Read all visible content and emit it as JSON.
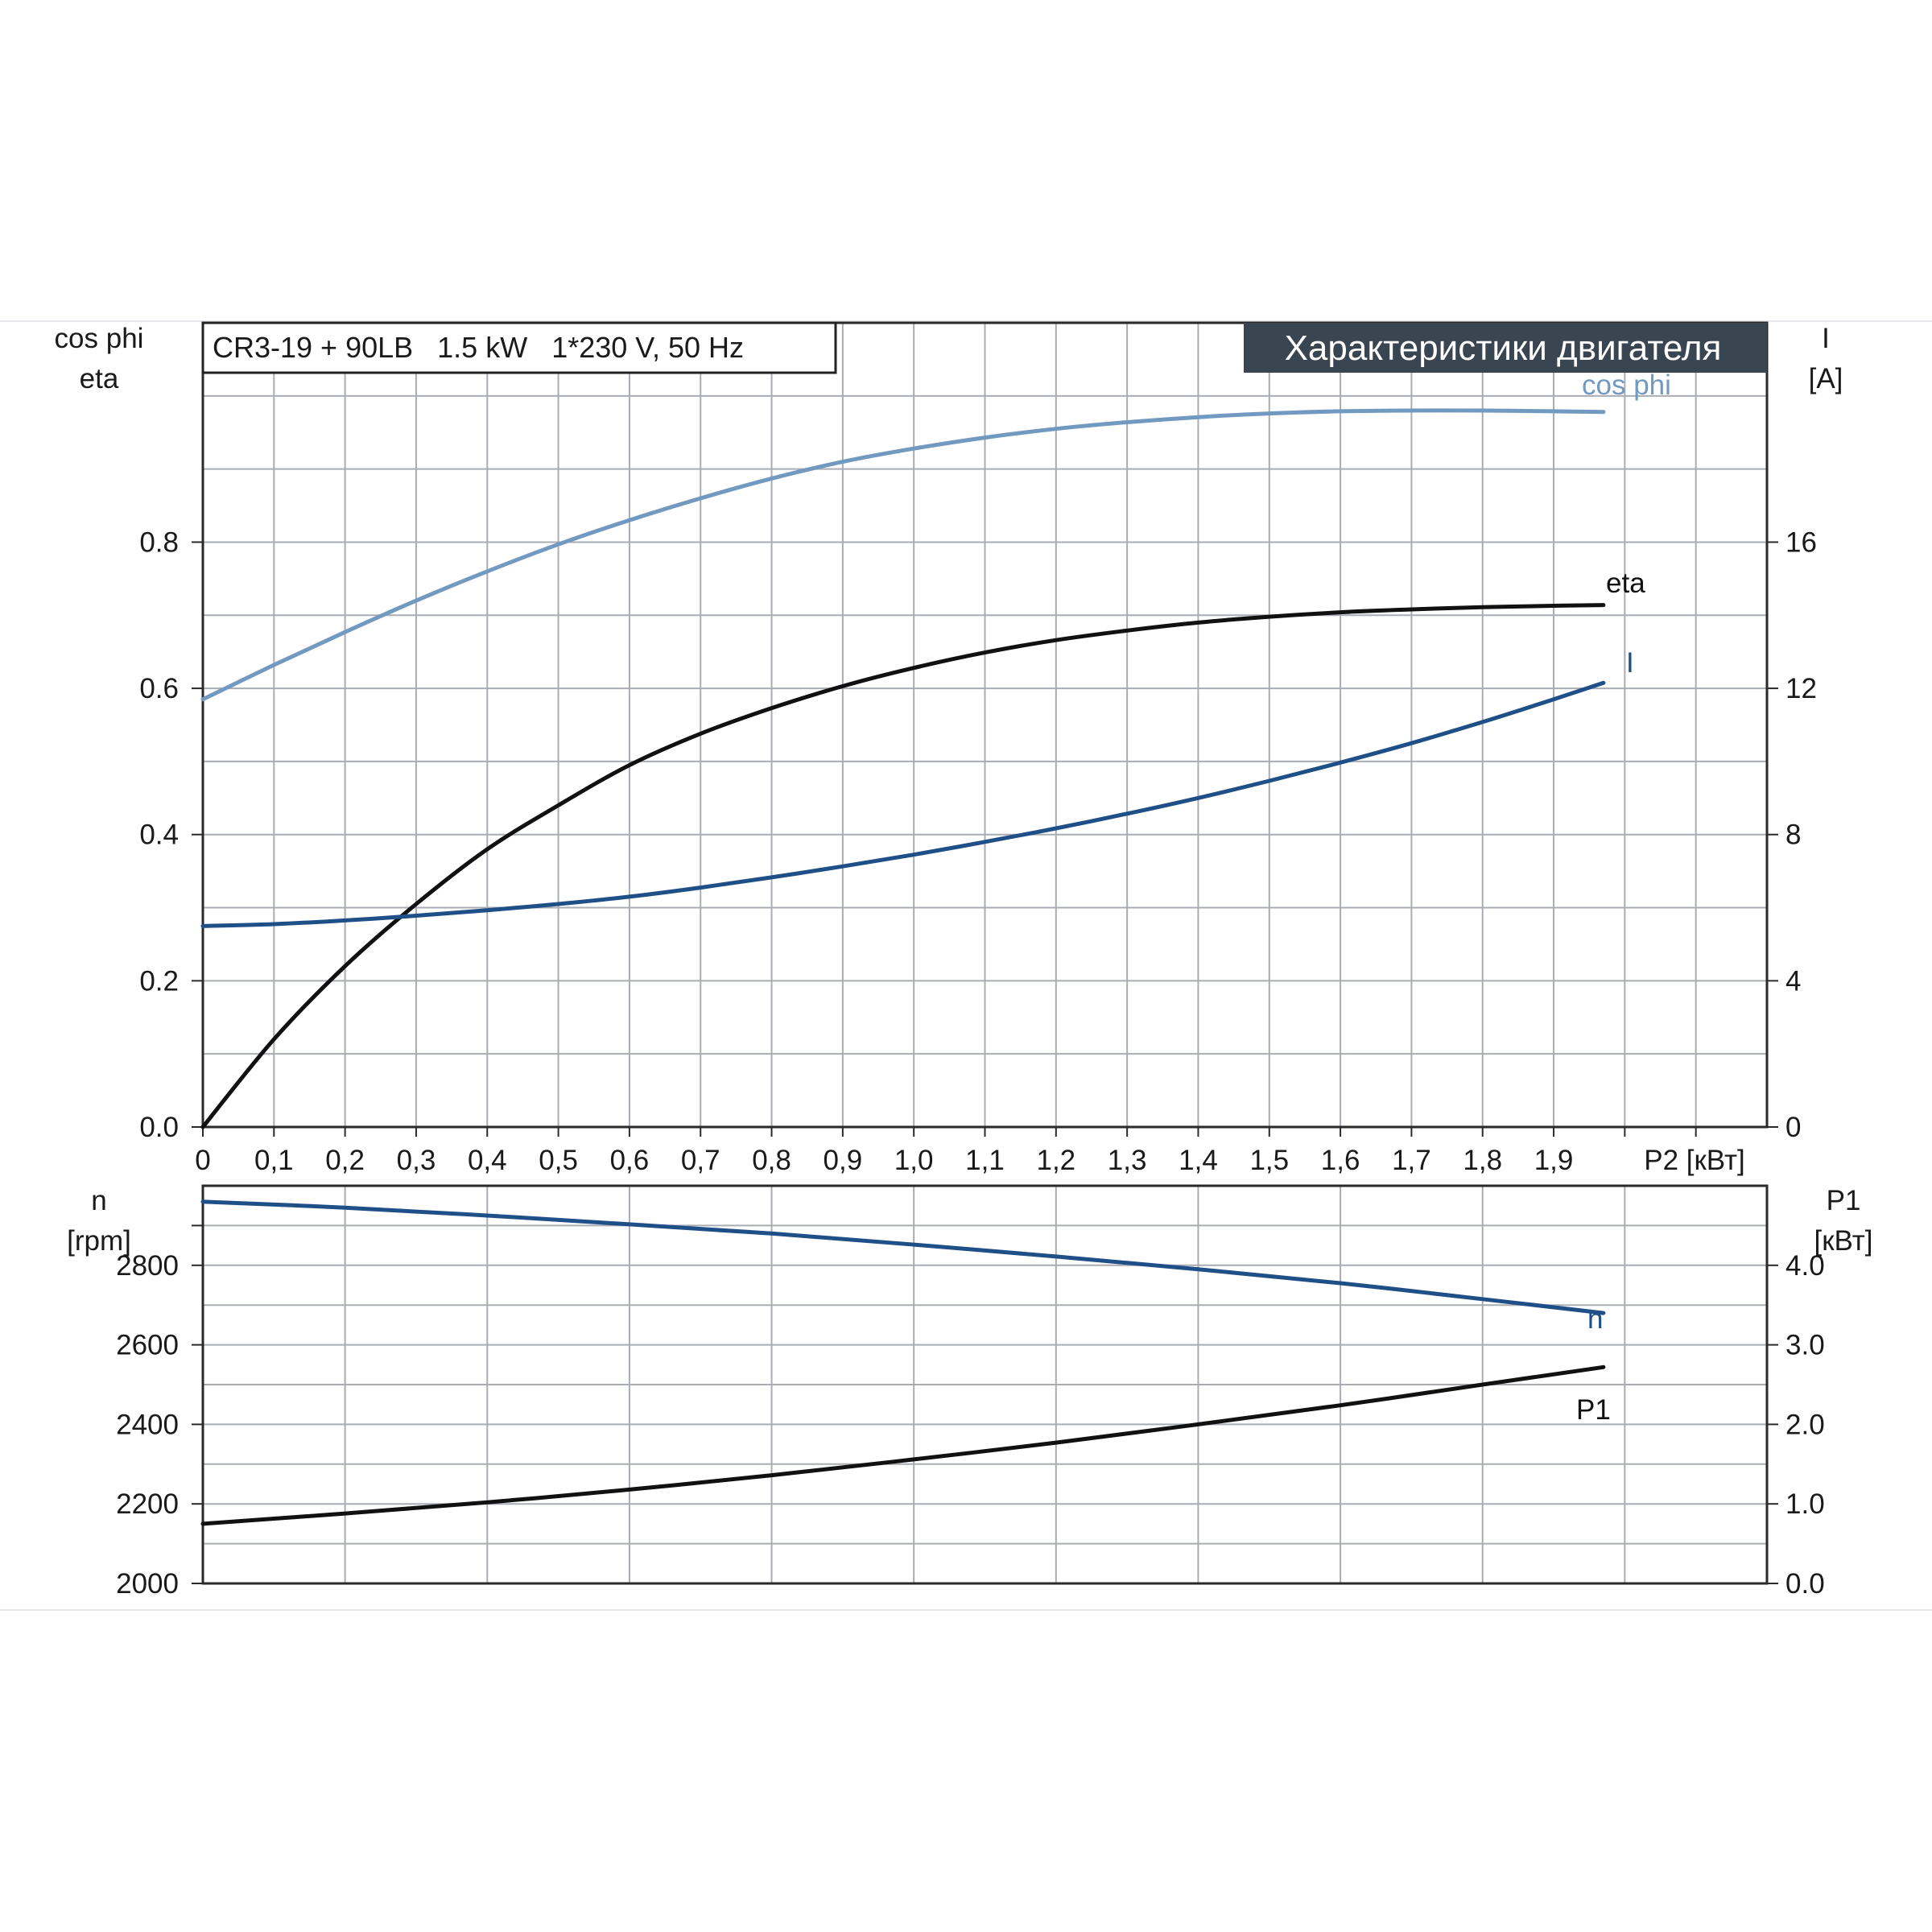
{
  "banner": "Характеристики двигателя",
  "info": "CR3-19 + 90LB   1.5 kW   1*230 V, 50 Hz",
  "colors": {
    "grid": "#a9adb3",
    "frame": "#2a2a2a",
    "banner_bg": "#3a4552",
    "cosphi": "#7299c0",
    "current": "#1f4f87",
    "eta": "#111111",
    "speed": "#1f4f87",
    "p1": "#111111",
    "background": "#ffffff"
  },
  "chart_data": [
    {
      "type": "line",
      "xlabel": "P2 [кВт]",
      "x_ticks": [
        "0",
        "0,1",
        "0,2",
        "0,3",
        "0,4",
        "0,5",
        "0,6",
        "0,7",
        "0,8",
        "0,9",
        "1,0",
        "1,1",
        "1,2",
        "1,3",
        "1,4",
        "1,5",
        "1,6",
        "1,7",
        "1,8",
        "1,9"
      ],
      "xlim": [
        0,
        2.2
      ],
      "y_left": {
        "labels": [
          "cos phi",
          "eta"
        ],
        "ticks": [
          "0.0",
          "0.2",
          "0.4",
          "0.6",
          "0.8"
        ],
        "lim": [
          0,
          1.1
        ]
      },
      "y_right": {
        "labels": [
          "I",
          "[A]"
        ],
        "ticks": [
          "0",
          "4",
          "8",
          "12",
          "16"
        ],
        "lim": [
          0,
          22
        ]
      },
      "grid": true,
      "series": [
        {
          "name": "cos phi",
          "axis": "left",
          "x": [
            0,
            0.1,
            0.2,
            0.3,
            0.4,
            0.5,
            0.6,
            0.7,
            0.8,
            0.9,
            1.0,
            1.1,
            1.2,
            1.3,
            1.4,
            1.5,
            1.6,
            1.7,
            1.8,
            1.9,
            1.97
          ],
          "y": [
            0.585,
            0.632,
            0.677,
            0.72,
            0.76,
            0.797,
            0.83,
            0.86,
            0.887,
            0.91,
            0.928,
            0.943,
            0.955,
            0.964,
            0.971,
            0.976,
            0.979,
            0.98,
            0.98,
            0.979,
            0.978
          ]
        },
        {
          "name": "eta",
          "axis": "left",
          "x": [
            0,
            0.1,
            0.2,
            0.3,
            0.4,
            0.5,
            0.6,
            0.7,
            0.8,
            0.9,
            1.0,
            1.1,
            1.2,
            1.3,
            1.4,
            1.5,
            1.6,
            1.7,
            1.8,
            1.9,
            1.97
          ],
          "y": [
            0.0,
            0.12,
            0.22,
            0.305,
            0.38,
            0.44,
            0.495,
            0.538,
            0.573,
            0.603,
            0.628,
            0.649,
            0.666,
            0.679,
            0.69,
            0.698,
            0.704,
            0.708,
            0.711,
            0.713,
            0.714
          ]
        },
        {
          "name": "I",
          "axis": "right",
          "x": [
            0,
            0.1,
            0.2,
            0.3,
            0.4,
            0.5,
            0.6,
            0.7,
            0.8,
            0.9,
            1.0,
            1.1,
            1.2,
            1.3,
            1.4,
            1.5,
            1.6,
            1.7,
            1.8,
            1.9,
            1.97
          ],
          "y": [
            5.5,
            5.55,
            5.65,
            5.78,
            5.93,
            6.1,
            6.3,
            6.55,
            6.83,
            7.13,
            7.45,
            7.8,
            8.17,
            8.57,
            9.0,
            9.47,
            9.97,
            10.5,
            11.08,
            11.7,
            12.15
          ]
        }
      ]
    },
    {
      "type": "line",
      "xlim": [
        0,
        2.2
      ],
      "y_left": {
        "labels": [
          "n",
          "[rpm]"
        ],
        "ticks": [
          "2000",
          "2200",
          "2400",
          "2600",
          "2800"
        ],
        "lim": [
          2000,
          3000
        ]
      },
      "y_right": {
        "labels": [
          "P1",
          "[кВт]"
        ],
        "ticks": [
          "0.0",
          "1.0",
          "2.0",
          "3.0",
          "4.0"
        ],
        "lim": [
          0,
          5
        ]
      },
      "grid": true,
      "series": [
        {
          "name": "n",
          "axis": "left",
          "x": [
            0,
            0.2,
            0.4,
            0.6,
            0.8,
            1.0,
            1.2,
            1.4,
            1.6,
            1.8,
            1.97
          ],
          "y": [
            2960,
            2945,
            2925,
            2903,
            2880,
            2852,
            2822,
            2790,
            2755,
            2715,
            2680
          ]
        },
        {
          "name": "P1",
          "axis": "right",
          "x": [
            0,
            0.2,
            0.4,
            0.6,
            0.8,
            1.0,
            1.2,
            1.4,
            1.6,
            1.8,
            1.97
          ],
          "y": [
            0.75,
            0.88,
            1.02,
            1.18,
            1.36,
            1.56,
            1.77,
            2.0,
            2.24,
            2.5,
            2.72
          ]
        }
      ]
    }
  ]
}
